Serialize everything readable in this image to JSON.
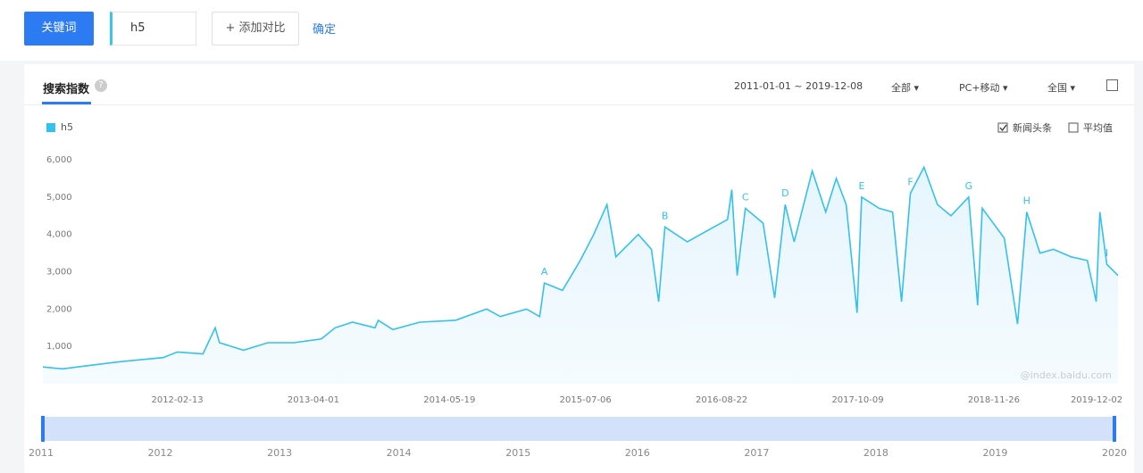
{
  "toolbar": {
    "keyword_button": "关键词",
    "keyword": "h5",
    "add_compare": "+ 添加对比",
    "confirm": "确定"
  },
  "panel": {
    "tab": "搜索指数",
    "help": "?",
    "date_range": "2011-01-01 ~ 2019-12-08",
    "filters": [
      "全部",
      "PC+移动",
      "全国"
    ],
    "checkboxes": [
      "新闻头条",
      "平均值"
    ],
    "watermark": "@index.baidu.com",
    "navigator_labels": [
      "2011",
      "2012",
      "2013",
      "2014",
      "2015",
      "2016",
      "2017",
      "2018",
      "2019",
      "2020"
    ]
  },
  "chart_data": {
    "type": "line",
    "x": [
      "2011-01-01",
      "2011-03-01",
      "2011-06-01",
      "2011-09-01",
      "2012-01-01",
      "2012-02-13",
      "2012-05-01",
      "2012-06-07",
      "2012-06-20",
      "2012-09-01",
      "2012-11-14",
      "2013-02-01",
      "2013-04-25",
      "2013-06-06",
      "2013-07-29",
      "2013-10-05",
      "2013-10-15",
      "2013-11-28",
      "2014-02-18",
      "2014-06-06",
      "2014-09-09",
      "2014-10-20",
      "2015-01-08",
      "2015-02-17",
      "2015-03-03",
      "2015-04-27",
      "2015-06-20",
      "2015-07-31",
      "2015-09-09",
      "2015-10-06",
      "2015-12-13",
      "2016-01-22",
      "2016-02-13",
      "2016-03-03",
      "2016-05-10",
      "2016-07-30",
      "2016-09-09",
      "2016-09-22",
      "2016-10-08",
      "2016-11-02",
      "2016-12-26",
      "2017-01-30",
      "2017-03-03",
      "2017-03-30",
      "2017-05-24",
      "2017-07-04",
      "2017-08-05",
      "2017-09-04",
      "2017-10-07",
      "2017-10-21",
      "2017-12-13",
      "2018-01-23",
      "2018-02-19",
      "2018-03-18",
      "2018-04-28",
      "2018-06-08",
      "2018-07-19",
      "2018-09-11",
      "2018-10-08",
      "2018-10-22",
      "2018-12-28",
      "2019-02-06",
      "2019-03-06",
      "2019-04-15",
      "2019-05-26",
      "2019-07-19",
      "2019-09-06",
      "2019-10-03",
      "2019-10-14",
      "2019-11-04",
      "2019-12-08"
    ],
    "series": [
      {
        "name": "h5",
        "color": "#35c0ee",
        "values": [
          450,
          400,
          500,
          600,
          700,
          850,
          800,
          1500,
          1100,
          900,
          1100,
          1100,
          1200,
          1500,
          1650,
          1500,
          1700,
          1450,
          1650,
          1700,
          2000,
          1800,
          2000,
          1800,
          2700,
          2500,
          3300,
          4000,
          4800,
          3400,
          4000,
          3600,
          2200,
          4200,
          3800,
          4200,
          4400,
          5200,
          2900,
          4700,
          4300,
          2300,
          4800,
          3800,
          5700,
          4600,
          5500,
          4800,
          1900,
          5000,
          4700,
          4600,
          2200,
          5100,
          5800,
          4800,
          4500,
          5000,
          2100,
          4700,
          3900,
          1600,
          4600,
          3500,
          3600,
          3400,
          3300,
          2200,
          4600,
          3200,
          2900
        ]
      }
    ],
    "xlim": [
      "2011-01-01",
      "2019-12-08"
    ],
    "xticks": [
      "2012-02-13",
      "2013-04-01",
      "2014-05-19",
      "2015-07-06",
      "2016-08-22",
      "2017-10-09",
      "2018-11-26",
      "2019-12-02"
    ],
    "ylim": [
      0,
      6000
    ],
    "yticks": [
      {
        "value": 1000,
        "label": "1,000"
      },
      {
        "value": 2000,
        "label": "2,000"
      },
      {
        "value": 3000,
        "label": "3,000"
      },
      {
        "value": 4000,
        "label": "4,000"
      },
      {
        "value": 5000,
        "label": "5,000"
      },
      {
        "value": 6000,
        "label": "6,000"
      }
    ],
    "grid": false,
    "annotations": [
      {
        "label": "A",
        "x": "2015-03-03"
      },
      {
        "label": "B",
        "x": "2016-03-03"
      },
      {
        "label": "C",
        "x": "2016-11-02"
      },
      {
        "label": "D",
        "x": "2017-03-03"
      },
      {
        "label": "E",
        "x": "2017-10-21"
      },
      {
        "label": "F",
        "x": "2018-03-18"
      },
      {
        "label": "G",
        "x": "2018-09-11"
      },
      {
        "label": "H",
        "x": "2019-03-06"
      },
      {
        "label": "I",
        "x": "2019-11-04"
      }
    ]
  }
}
